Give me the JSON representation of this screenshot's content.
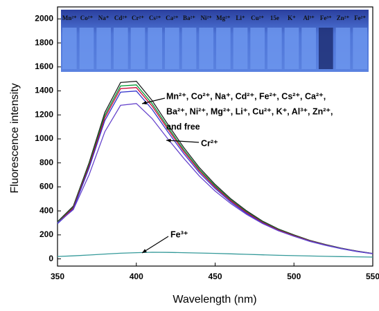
{
  "chart_data": {
    "type": "line",
    "x_label": "Wavelength (nm)",
    "y_label": "Fluorescence intensity",
    "x": [
      350,
      360,
      370,
      380,
      390,
      400,
      410,
      420,
      430,
      440,
      450,
      460,
      470,
      480,
      490,
      500,
      510,
      520,
      530,
      540,
      550
    ],
    "xlim": [
      350,
      550
    ],
    "xticks": [
      350,
      400,
      450,
      500,
      550
    ],
    "ylim": [
      -60,
      2100
    ],
    "yticks": [
      0,
      200,
      400,
      600,
      800,
      1000,
      1200,
      1400,
      1600,
      1800,
      2000
    ],
    "series": [
      {
        "color": "#222222",
        "values": [
          310,
          440,
          800,
          1220,
          1470,
          1480,
          1320,
          1120,
          930,
          760,
          620,
          500,
          400,
          315,
          250,
          200,
          155,
          120,
          90,
          65,
          45
        ]
      },
      {
        "color": "#009933",
        "values": [
          304,
          431,
          784,
          1196,
          1441,
          1450,
          1294,
          1098,
          911,
          745,
          608,
          490,
          392,
          309,
          245,
          196,
          152,
          118,
          88,
          64,
          44
        ]
      },
      {
        "color": "#cc0033",
        "values": [
          299,
          425,
          772,
          1177,
          1419,
          1428,
          1274,
          1081,
          897,
          733,
          598,
          483,
          386,
          304,
          241,
          193,
          150,
          116,
          87,
          63,
          43
        ]
      },
      {
        "color": "#3333cc",
        "values": [
          293,
          416,
          756,
          1153,
          1389,
          1399,
          1247,
          1058,
          879,
          718,
          586,
          473,
          378,
          298,
          236,
          189,
          146,
          113,
          85,
          61,
          43
        ]
      },
      {
        "color": "#6644cc",
        "values": [
          300,
          410,
          700,
          1060,
          1280,
          1295,
          1170,
          1000,
          840,
          690,
          565,
          460,
          370,
          295,
          235,
          188,
          148,
          115,
          87,
          63,
          44
        ]
      },
      {
        "color": "#339999",
        "values": [
          20,
          25,
          32,
          40,
          47,
          52,
          55,
          54,
          52,
          49,
          46,
          42,
          38,
          34,
          30,
          27,
          24,
          21,
          19,
          17,
          15
        ]
      }
    ],
    "annotations": {
      "group": [
        "Mn²⁺, Co²⁺, Na⁺, Cd²⁺, Fe²⁺, Cs²⁺, Ca²⁺,",
        "Ba²⁺, Ni²⁺, Mg²⁺, Li⁺, Cu²⁺, K⁺, Al³⁺, Zn²⁺,",
        "and free"
      ],
      "cr": "Cr²⁺",
      "fe": "Fe³⁺"
    },
    "vial_labels": [
      "Mn²⁺",
      "Co²⁺",
      "Na⁺",
      "Cd²⁺",
      "Cr²⁺",
      "Cs²⁺",
      "Ca²⁺",
      "Ba²⁺",
      "Ni²⁺",
      "Mg²⁺",
      "Li⁺",
      "Cu²⁺",
      "15e",
      "K⁺",
      "Al³⁺",
      "Fe³⁺",
      "Zn²⁺",
      "Fe²⁺"
    ]
  }
}
